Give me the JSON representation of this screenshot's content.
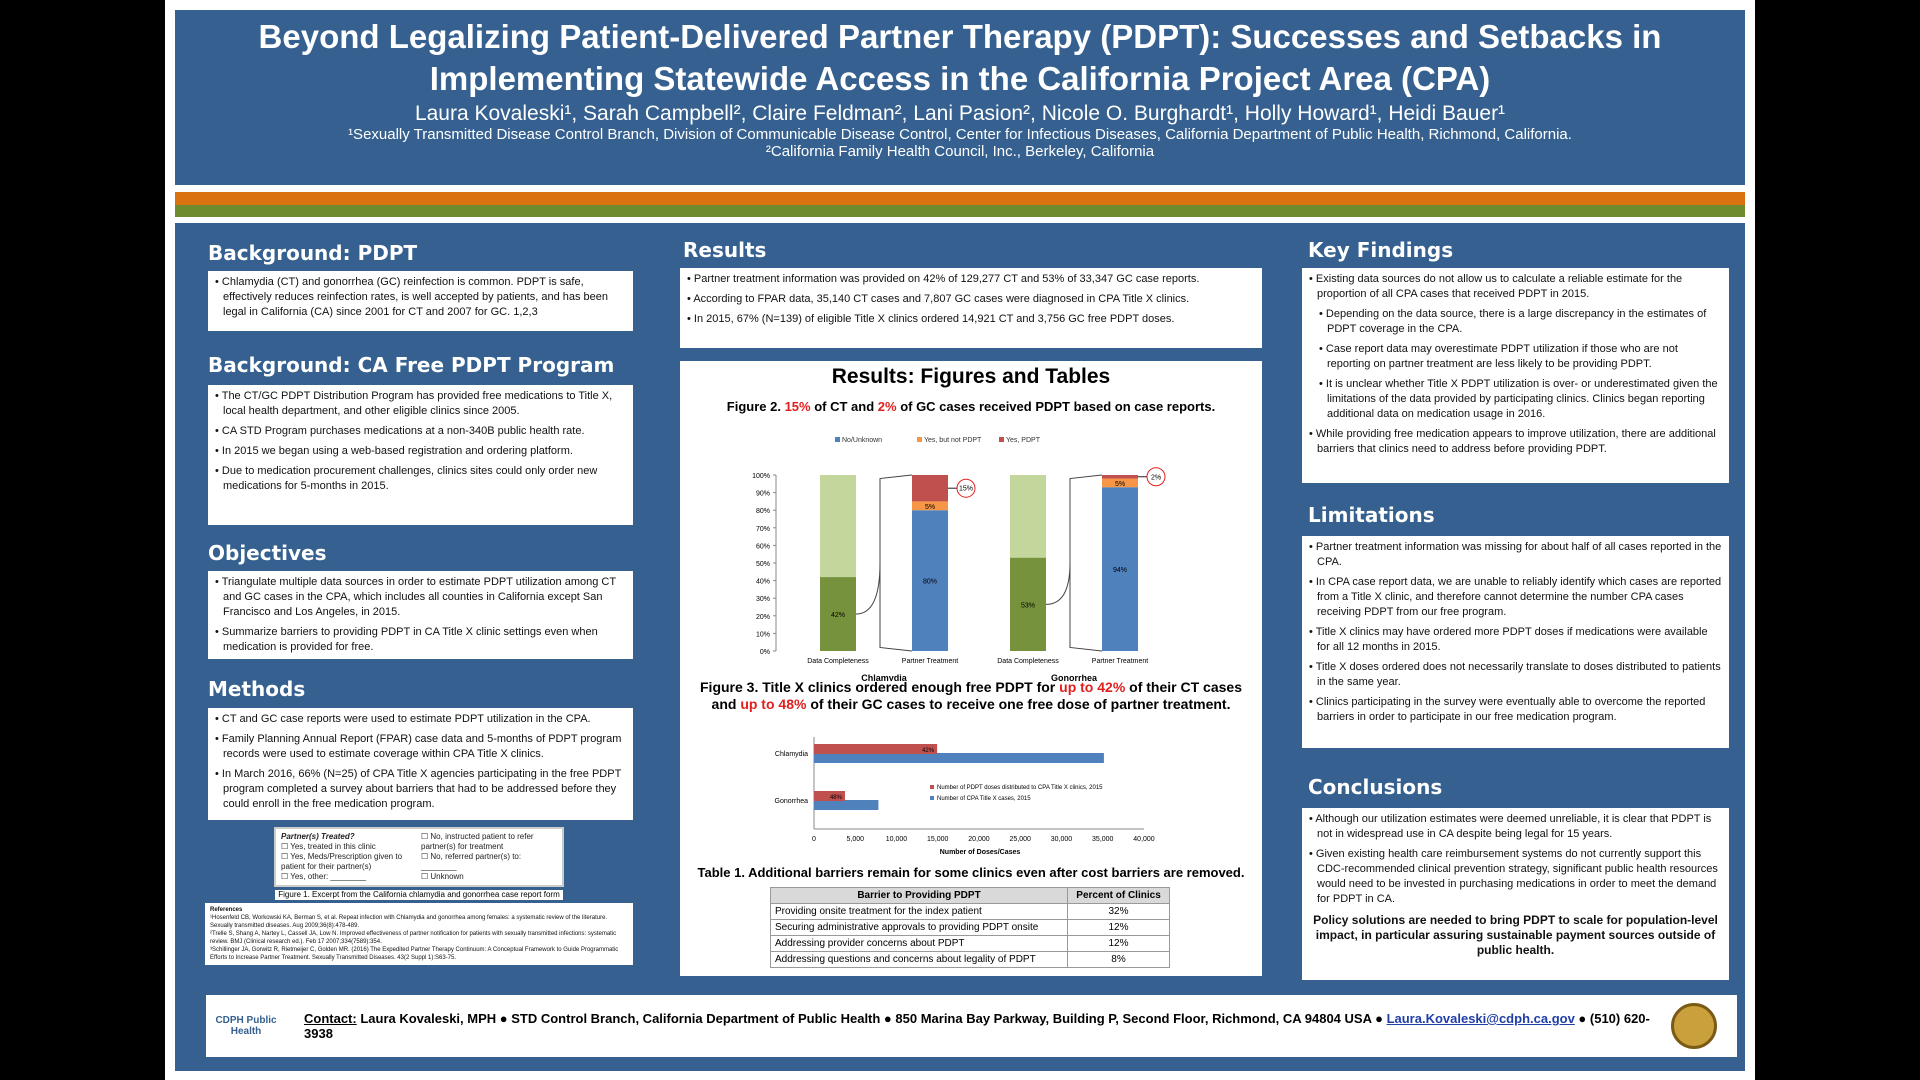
{
  "header": {
    "title": "Beyond Legalizing Patient-Delivered Partner Therapy (PDPT): Successes and Setbacks in Implementing Statewide Access in the California Project Area (CPA)",
    "authors": "Laura Kovaleski¹, Sarah Campbell², Claire Feldman², Lani Pasion², Nicole O. Burghardt¹, Holly Howard¹, Heidi Bauer¹",
    "aff1": "¹Sexually Transmitted Disease Control Branch, Division of Communicable Disease Control, Center for Infectious Diseases, California Department of Public Health, Richmond, California.",
    "aff2": "²California Family Health Council, Inc., Berkeley, California"
  },
  "background": {
    "title": "Background: PDPT",
    "items": [
      "Chlamydia (CT) and gonorrhea (GC) reinfection is common. PDPT is safe, effectively reduces reinfection rates, is well accepted by patients, and has been legal in California (CA) since 2001 for CT and 2007 for GC. 1,2,3"
    ]
  },
  "program": {
    "title": "Background: CA Free PDPT Program",
    "items": [
      "The CT/GC PDPT Distribution Program has provided free medications to Title X, local health department, and other eligible clinics since 2005.",
      "CA STD Program purchases medications at a non-340B public health rate.",
      "In 2015 we began using a web-based registration and ordering platform.",
      "Due to medication procurement challenges, clinics sites could only order new medications for 5-months in 2015."
    ]
  },
  "objectives": {
    "title": "Objectives",
    "items": [
      "Triangulate multiple data sources in order to estimate PDPT utilization among CT and GC cases in the CPA, which includes all counties in California except San Francisco and Los Angeles, in 2015.",
      "Summarize barriers to providing PDPT in CA Title X clinic settings even when medication is provided for free."
    ]
  },
  "methods": {
    "title": "Methods",
    "items": [
      "CT and GC case reports were used to estimate PDPT utilization in the CPA.",
      "Family Planning Annual Report (FPAR) case data and 5-months of PDPT program records were used to estimate coverage within CPA Title X clinics.",
      "In March 2016, 66% (N=25) of CPA Title X agencies participating in the free PDPT program completed a survey about barriers that had to be addressed before they could enroll in the free medication program."
    ]
  },
  "form": {
    "heading": "Partner(s) Treated?",
    "options": [
      "Yes, treated in this clinic",
      "Yes, Meds/Prescription given to patient for their partner(s)",
      "Yes, other: ________",
      "No, instructed patient to refer partner(s) for treatment",
      "No, referred partner(s) to: ________",
      "Unknown"
    ],
    "caption": "Figure 1. Excerpt from the California chlamydia and gonorrhea case report form"
  },
  "references": {
    "title": "References",
    "items": [
      "¹Hosenfeld CB, Workowski KA, Berman S, et al. Repeat infection with Chlamydia and gonorrhea among females: a systematic review of the literature. Sexually transmitted diseases. Aug 2009;36(8):478-489.",
      "²Trelle S, Shang A, Nartey L, Cassell JA, Low N. Improved effectiveness of partner notification for patients with sexually transmitted infections: systematic review. BMJ (Clinical research ed.). Feb 17 2007;334(7589):354.",
      "³Schillinger JA, Gorwitz R, Rietmeijer C, Golden MR. (2016) The Expedited Partner Therapy Continuum: A Conceptual Framework to Guide Programmatic Efforts to Increase Partner Treatment. Sexually Transmitted Diseases. 43(2 Suppl 1):S63-75."
    ]
  },
  "results": {
    "title": "Results",
    "items": [
      "Partner treatment information was provided on 42% of 129,277 CT and 53% of 33,347 GC case reports.",
      "According to FPAR data, 35,140 CT cases and 7,807 GC cases were diagnosed in CPA Title X clinics.",
      "In 2015, 67% (N=139) of eligible Title X clinics ordered 14,921 CT and 3,756 GC free PDPT doses."
    ]
  },
  "figures": {
    "title": "Results: Figures and Tables",
    "fig2_a": "Figure 2. ",
    "fig2_b": "15%",
    "fig2_c": " of CT and ",
    "fig2_d": "2%",
    "fig2_e": " of GC cases received PDPT based on case reports.",
    "fig3_a": "Figure 3. Title X clinics ordered enough free PDPT for ",
    "fig3_b": "up to 42%",
    "fig3_c": " of their CT cases and ",
    "fig3_d": "up to 48%",
    "fig3_e": " of their GC cases to receive one free dose of partner treatment.",
    "table_title": "Table 1. Additional barriers remain for some clinics even after cost barriers are removed."
  },
  "chart_data": [
    {
      "type": "bar",
      "stacked": true,
      "legend": [
        "No/Unknown",
        "Yes, but not PDPT",
        "Yes, PDPT"
      ],
      "legend_position": "top",
      "ylim": [
        0,
        100
      ],
      "yticks": [
        "0%",
        "10%",
        "20%",
        "30%",
        "40%",
        "50%",
        "60%",
        "70%",
        "80%",
        "90%",
        "100%"
      ],
      "groups": [
        {
          "name": "Chlamydia",
          "data_completeness": 42,
          "partner_treatment": {
            "No/Unknown": 80,
            "Yes, but not PDPT": 5,
            "Yes, PDPT": 15
          }
        },
        {
          "name": "Gonorrhea",
          "data_completeness": 53,
          "partner_treatment": {
            "No/Unknown": 94,
            "Yes, but not PDPT": 5,
            "Yes, PDPT": 2
          }
        }
      ],
      "categories": [
        "Data Completeness",
        "Partner Treatment"
      ],
      "labels": {
        "c_dc": "42%",
        "c_no": "80%",
        "c_ynp": "5%",
        "c_y": "15%",
        "g_dc": "53%",
        "g_no": "94%",
        "g_ynp": "5%",
        "g_y": "2%"
      },
      "colors": {
        "No/Unknown": "#4f81bd",
        "Yes, but not PDPT": "#f79646",
        "Yes, PDPT": "#c0504d",
        "complete": "#76923c",
        "missing": "#c3d69b"
      }
    },
    {
      "type": "bar",
      "orientation": "horizontal",
      "categories": [
        "Chlamydia",
        "Gonorrhea"
      ],
      "series": [
        {
          "name": "Number of PDPT doses distributed to CPA Title X clinics, 2015",
          "values": [
            14921,
            3756
          ],
          "labels": [
            "42%",
            "48%"
          ],
          "color": "#c0504d"
        },
        {
          "name": "Number of CPA Title X cases, 2015",
          "values": [
            35140,
            7807
          ],
          "color": "#4f81bd"
        }
      ],
      "xlabel": "Number of Doses/Cases",
      "xlim": [
        0,
        40000
      ],
      "xticks": [
        "0",
        "5,000",
        "10,000",
        "15,000",
        "20,000",
        "25,000",
        "30,000",
        "35,000",
        "40,000"
      ]
    },
    {
      "type": "table",
      "headers": [
        "Barrier  to Providing PDPT",
        "Percent of Clinics"
      ],
      "rows": [
        [
          "Providing onsite treatment for the index patient",
          "32%"
        ],
        [
          "Securing administrative approvals to providing PDPT onsite",
          "12%"
        ],
        [
          "Addressing provider concerns about PDPT",
          "12%"
        ],
        [
          "Addressing questions and concerns about legality of PDPT",
          "8%"
        ]
      ]
    }
  ],
  "key": {
    "title": "Key Findings",
    "items": [
      "Existing data sources do not allow us to calculate a reliable estimate for the proportion of all CPA cases that received PDPT in 2015.",
      "Depending on the data source, there is a large discrepancy in the estimates of PDPT coverage in the CPA.",
      "Case report data may overestimate PDPT utilization if those who are not reporting on partner treatment are less likely to be providing PDPT.",
      "It is unclear whether Title X PDPT utilization is over- or underestimated given the limitations of the data provided by participating clinics. Clinics began reporting additional data on medication usage in 2016.",
      "While providing free medication appears to improve utilization, there are additional barriers that clinics need to address before providing PDPT."
    ]
  },
  "limits": {
    "title": "Limitations",
    "items": [
      "Partner treatment information was missing for about half of all cases reported in the CPA.",
      "In CPA case report data, we are unable to reliably identify which cases are reported from a Title X clinic, and therefore cannot determine the number CPA cases receiving PDPT from our free program.",
      "Title X clinics may have ordered more PDPT doses if medications were available for all 12 months in 2015.",
      "Title X doses ordered does not necessarily translate to doses distributed to patients in the same year.",
      "Clinics participating in the survey were eventually able to overcome the reported barriers in order to participate in our free medication program."
    ]
  },
  "conclusions": {
    "title": "Conclusions",
    "items": [
      "Although our utilization estimates were deemed unreliable, it is clear that PDPT is not in widespread use in CA despite being legal for 15 years.",
      "Given existing health care reimbursement systems do not currently support this CDC-recommended clinical prevention strategy, significant public health resources would need to be invested in purchasing medications in order to meet the demand for PDPT in CA."
    ],
    "policy": "Policy solutions are needed to bring PDPT to scale for population-level impact, in particular assuring sustainable payment sources outside of public health."
  },
  "footer": {
    "logo": "CDPH Public Health",
    "contact_label": "Contact:",
    "contact": " Laura Kovaleski, MPH ● STD Control Branch, California Department of Public Health ● 850 Marina Bay Parkway, Building P, Second Floor, Richmond, CA 94804 USA ● ",
    "email": "Laura.Kovaleski@cdph.ca.gov",
    "phone": " ● (510) 620-3938"
  }
}
